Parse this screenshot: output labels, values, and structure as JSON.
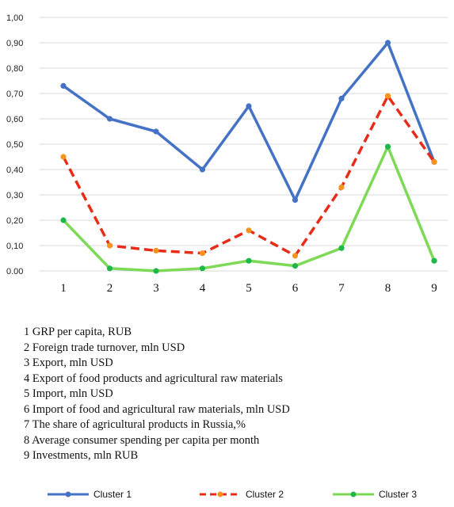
{
  "chart_data": {
    "type": "line",
    "categories": [
      "1",
      "2",
      "3",
      "4",
      "5",
      "6",
      "7",
      "8",
      "9"
    ],
    "y_ticks": [
      "0.00",
      "0,10",
      "0,20",
      "0,30",
      "0,40",
      "0,50",
      "0,60",
      "0,70",
      "0,80",
      "0,90",
      "1,00"
    ],
    "ylim": [
      0,
      1
    ],
    "grid": true,
    "legend_position": "bottom",
    "series": [
      {
        "name": "Cluster 1",
        "color": "#4472C4",
        "dash": "solid",
        "values": [
          0.73,
          0.6,
          0.55,
          0.4,
          0.65,
          0.28,
          0.68,
          0.9,
          0.43
        ]
      },
      {
        "name": "Cluster 2",
        "color": "#E82C1A",
        "marker_color": "#F7941D",
        "dash": "dashed",
        "values": [
          0.45,
          0.1,
          0.08,
          0.07,
          0.16,
          0.06,
          0.33,
          0.69,
          0.43
        ]
      },
      {
        "name": "Cluster 3",
        "color": "#7ED957",
        "marker_color": "#1EB84A",
        "dash": "solid",
        "values": [
          0.2,
          0.01,
          0.0,
          0.01,
          0.04,
          0.02,
          0.09,
          0.49,
          0.04
        ]
      }
    ]
  },
  "notes": [
    "1 GRP per capita, RUB",
    "2 Foreign trade turnover, mln USD",
    "3 Export, mln USD",
    "4 Export of food products and agricultural raw materials",
    "5 Import, mln USD",
    "6 Import of food and agricultural raw materials, mln USD",
    "7 The share of agricultural products in Russia,%",
    "8 Average consumer spending per capita per month",
    "9 Investments, mln RUB"
  ]
}
